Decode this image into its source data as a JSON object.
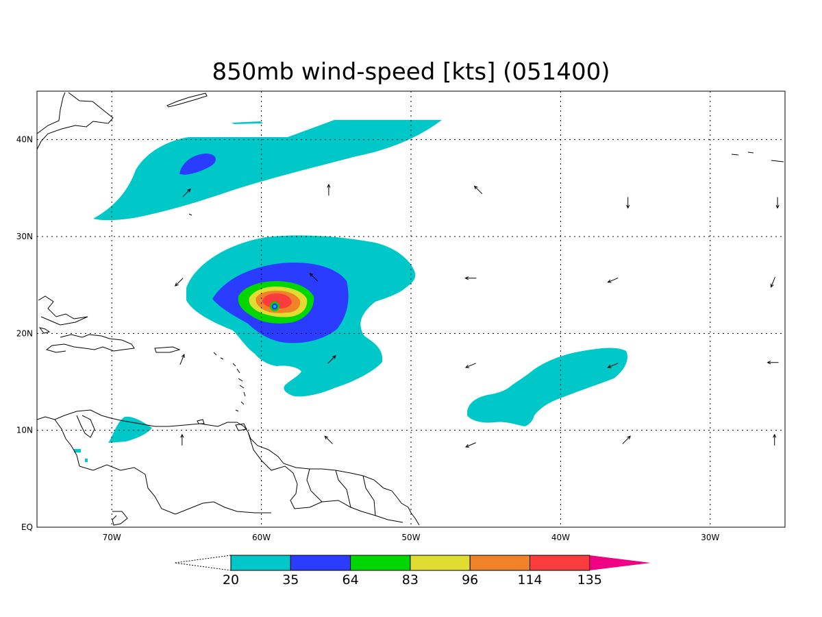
{
  "title": "850mb wind-speed [kts] (051400)",
  "map": {
    "lon_min": -75,
    "lon_max": -25,
    "lat_min": 0,
    "lat_max": 45,
    "lon_ticks": [
      {
        "value": -70,
        "label": "70W"
      },
      {
        "value": -60,
        "label": "60W"
      },
      {
        "value": -50,
        "label": "50W"
      },
      {
        "value": -40,
        "label": "40W"
      },
      {
        "value": -30,
        "label": "30W"
      }
    ],
    "lat_ticks": [
      {
        "value": 0,
        "label": "EQ"
      },
      {
        "value": 10,
        "label": "10N"
      },
      {
        "value": 20,
        "label": "20N"
      },
      {
        "value": 30,
        "label": "30N"
      },
      {
        "value": 40,
        "label": "40N"
      }
    ],
    "gridlines": true
  },
  "colorbar": {
    "levels": [
      "20",
      "35",
      "64",
      "83",
      "96",
      "114",
      "135"
    ],
    "colors": [
      "#00c8c8",
      "#2a3cff",
      "#00d700",
      "#e1dc32",
      "#f08228",
      "#fa3c3c",
      "#f00082"
    ],
    "below_min": "white (triangle, dashed outline)",
    "above_max": "#f00082"
  },
  "wind_vectors": [
    {
      "lon": -65,
      "lat": 34.5,
      "dir": "NE"
    },
    {
      "lon": -55.5,
      "lat": 34.8,
      "dir": "N"
    },
    {
      "lon": -45.5,
      "lat": 34.8,
      "dir": "NW"
    },
    {
      "lon": -35.5,
      "lat": 33.5,
      "dir": "S"
    },
    {
      "lon": -25.5,
      "lat": 33.5,
      "dir": "S"
    },
    {
      "lon": -65.5,
      "lat": 25.3,
      "dir": "SW"
    },
    {
      "lon": -56.5,
      "lat": 25.8,
      "dir": "NW"
    },
    {
      "lon": -46,
      "lat": 25.7,
      "dir": "W"
    },
    {
      "lon": -36.5,
      "lat": 25.5,
      "dir": "WSW"
    },
    {
      "lon": -25.8,
      "lat": 25.3,
      "dir": "SSW"
    },
    {
      "lon": -65.3,
      "lat": 17.3,
      "dir": "NNE"
    },
    {
      "lon": -55.3,
      "lat": 17.3,
      "dir": "NE"
    },
    {
      "lon": -46,
      "lat": 16.7,
      "dir": "WSW"
    },
    {
      "lon": -36.5,
      "lat": 16.7,
      "dir": "WSW"
    },
    {
      "lon": -25.8,
      "lat": 17,
      "dir": "W"
    },
    {
      "lon": -65.3,
      "lat": 9,
      "dir": "N"
    },
    {
      "lon": -55.5,
      "lat": 9,
      "dir": "NW"
    },
    {
      "lon": -46,
      "lat": 8.5,
      "dir": "WSW"
    },
    {
      "lon": -35.6,
      "lat": 9,
      "dir": "NE"
    },
    {
      "lon": -25.7,
      "lat": 9,
      "dir": "N"
    }
  ]
}
